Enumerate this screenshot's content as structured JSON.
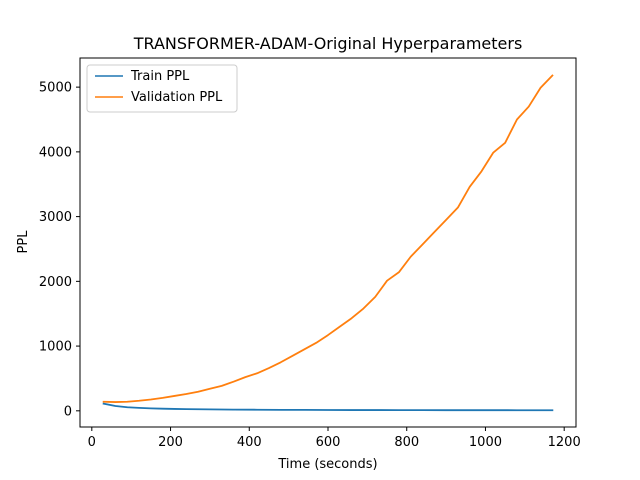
{
  "chart_data": {
    "type": "line",
    "title": "TRANSFORMER-ADAM-Original Hyperparameters",
    "xlabel": "Time (seconds)",
    "ylabel": "PPL",
    "xlim": [
      -30,
      1230
    ],
    "ylim": [
      -250,
      5450
    ],
    "xticks": [
      0,
      200,
      400,
      600,
      800,
      1000,
      1200
    ],
    "yticks": [
      0,
      1000,
      2000,
      3000,
      4000,
      5000
    ],
    "grid": false,
    "legend_position": "upper left",
    "series": [
      {
        "name": "Train PPL",
        "color": "#1f77b4",
        "x": [
          30,
          60,
          90,
          120,
          150,
          180,
          210,
          240,
          270,
          300,
          360,
          420,
          480,
          540,
          600,
          660,
          720,
          780,
          840,
          900,
          960,
          1020,
          1080,
          1140,
          1170
        ],
        "y": [
          110,
          75,
          55,
          45,
          38,
          33,
          29,
          26,
          24,
          22,
          19,
          17,
          15,
          14,
          13,
          12,
          12,
          11,
          11,
          10,
          10,
          10,
          9,
          9,
          9
        ]
      },
      {
        "name": "Validation PPL",
        "color": "#ff7f0e",
        "x": [
          30,
          60,
          90,
          120,
          150,
          180,
          210,
          240,
          270,
          300,
          330,
          360,
          390,
          420,
          450,
          480,
          510,
          540,
          570,
          600,
          630,
          660,
          690,
          720,
          750,
          780,
          810,
          840,
          870,
          900,
          930,
          960,
          990,
          1020,
          1050,
          1080,
          1110,
          1140,
          1170
        ],
        "y": [
          140,
          135,
          140,
          155,
          175,
          200,
          230,
          260,
          295,
          340,
          385,
          450,
          520,
          580,
          660,
          750,
          850,
          950,
          1050,
          1170,
          1300,
          1430,
          1580,
          1760,
          2010,
          2140,
          2380,
          2570,
          2760,
          2950,
          3140,
          3460,
          3700,
          3990,
          4140,
          4500,
          4700,
          4990,
          5180
        ]
      }
    ]
  }
}
